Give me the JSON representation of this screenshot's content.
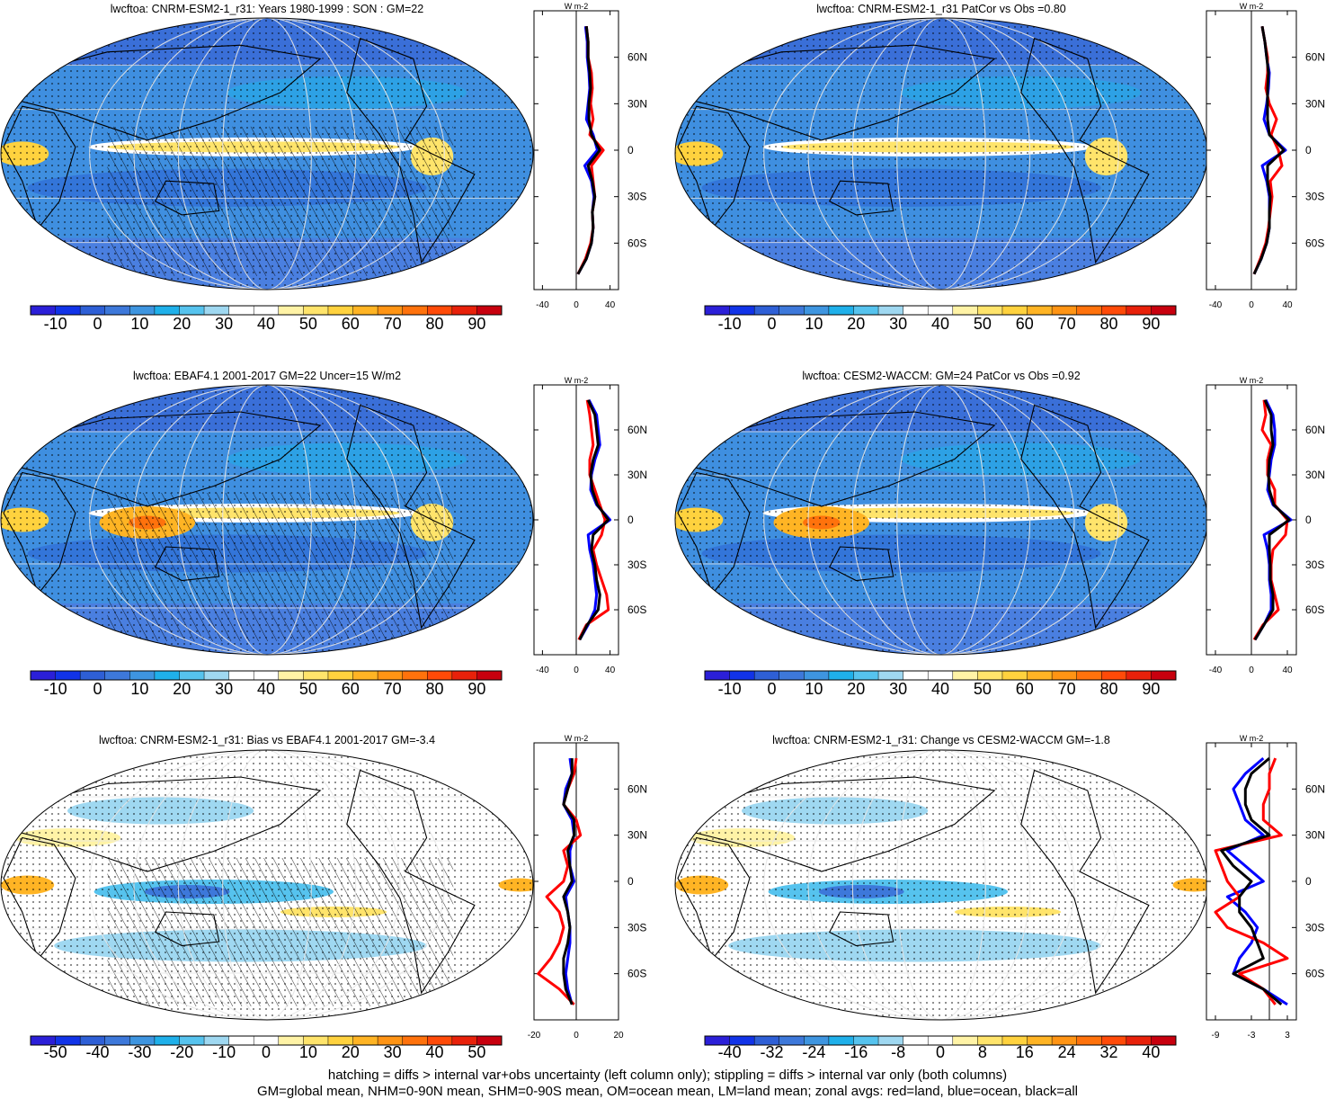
{
  "chart_data": [
    {
      "panel": "top-left",
      "type": "heatmap",
      "title": "lwcftoa: CNRM-ESM2-1_r31: Years 1980-1999 : SON : GM=22",
      "colorbar": {
        "tick_labels": [
          "-10",
          "0",
          "10",
          "20",
          "30",
          "40",
          "50",
          "60",
          "70",
          "80",
          "90"
        ],
        "colors": [
          "#2b1fd8",
          "#1133e8",
          "#2e5fd6",
          "#3d78da",
          "#3e95e0",
          "#1fb0ea",
          "#56c3ee",
          "#9fd8f1",
          "#ffffff",
          "#ffffff",
          "#fff3a6",
          "#ffe46b",
          "#ffd23e",
          "#ffb424",
          "#ff9414",
          "#ff720c",
          "#ff4a08",
          "#e8210a",
          "#c8000e"
        ]
      },
      "zonal": {
        "units": "W m-2",
        "x_tick_labels": [
          "-40",
          "0",
          "40"
        ],
        "xlim": [
          -50,
          50
        ],
        "y_tick_labels": [
          "60N",
          "30N",
          "0",
          "30S",
          "60S"
        ],
        "ylim": [
          -90,
          90
        ],
        "lat": [
          -80,
          -70,
          -60,
          -50,
          -40,
          -30,
          -20,
          -10,
          0,
          10,
          20,
          30,
          40,
          50,
          60,
          70,
          80
        ],
        "series": [
          {
            "color": "#0000ff",
            "values": [
              2,
              12,
              18,
              20,
              19,
              21,
              18,
              10,
              25,
              20,
              12,
              14,
              16,
              15,
              13,
              13,
              11
            ]
          },
          {
            "color": "#ff0000",
            "values": [
              2,
              11,
              17,
              20,
              19,
              22,
              20,
              18,
              32,
              16,
              20,
              17,
              19,
              18,
              14,
              14,
              12
            ]
          },
          {
            "color": "#000000",
            "values": [
              2,
              12,
              18,
              20,
              19,
              22,
              19,
              14,
              28,
              18,
              15,
              15,
              17,
              16,
              14,
              14,
              12
            ]
          }
        ]
      }
    },
    {
      "panel": "top-right",
      "type": "heatmap",
      "title": "lwcftoa: CNRM-ESM2-1_r31 PatCor vs Obs =0.80",
      "colorbar": {
        "tick_labels": [
          "-10",
          "0",
          "10",
          "20",
          "30",
          "40",
          "50",
          "60",
          "70",
          "80",
          "90"
        ],
        "colors": [
          "#2b1fd8",
          "#1133e8",
          "#2e5fd6",
          "#3d78da",
          "#3e95e0",
          "#1fb0ea",
          "#56c3ee",
          "#9fd8f1",
          "#ffffff",
          "#ffffff",
          "#fff3a6",
          "#ffe46b",
          "#ffd23e",
          "#ffb424",
          "#ff9414",
          "#ff720c",
          "#ff4a08",
          "#e8210a",
          "#c8000e"
        ]
      },
      "zonal": {
        "units": "W m-2",
        "x_tick_labels": [
          "-40",
          "0",
          "40"
        ],
        "xlim": [
          -50,
          50
        ],
        "y_tick_labels": [
          "60N",
          "30N",
          "0",
          "30S",
          "60S"
        ],
        "ylim": [
          -90,
          90
        ],
        "lat": [
          -80,
          -70,
          -60,
          -50,
          -40,
          -30,
          -20,
          -10,
          0,
          10,
          20,
          30,
          40,
          50,
          60,
          70,
          80
        ],
        "series": [
          {
            "color": "#0000ff",
            "values": [
              3,
              11,
              17,
              20,
              20,
              20,
              17,
              12,
              38,
              20,
              14,
              17,
              19,
              20,
              17,
              15,
              12
            ]
          },
          {
            "color": "#ff0000",
            "values": [
              3,
              10,
              16,
              19,
              21,
              23,
              21,
              34,
              30,
              22,
              28,
              20,
              16,
              18,
              18,
              15,
              12
            ]
          },
          {
            "color": "#000000",
            "values": [
              3,
              11,
              17,
              20,
              20,
              21,
              18,
              18,
              36,
              20,
              18,
              18,
              18,
              19,
              17,
              15,
              12
            ]
          }
        ]
      }
    },
    {
      "panel": "middle-left",
      "type": "heatmap",
      "title": "lwcftoa: EBAF4.1 2001-2017 GM=22 Uncer=15 W/m2",
      "colorbar": {
        "tick_labels": [
          "-10",
          "0",
          "10",
          "20",
          "30",
          "40",
          "50",
          "60",
          "70",
          "80",
          "90"
        ],
        "colors": [
          "#2b1fd8",
          "#1133e8",
          "#2e5fd6",
          "#3d78da",
          "#3e95e0",
          "#1fb0ea",
          "#56c3ee",
          "#9fd8f1",
          "#ffffff",
          "#ffffff",
          "#fff3a6",
          "#ffe46b",
          "#ffd23e",
          "#ffb424",
          "#ff9414",
          "#ff720c",
          "#ff4a08",
          "#e8210a",
          "#c8000e"
        ]
      },
      "zonal": {
        "units": "W m-2",
        "x_tick_labels": [
          "-40",
          "0",
          "40"
        ],
        "xlim": [
          -50,
          50
        ],
        "y_tick_labels": [
          "60N",
          "30N",
          "0",
          "30S",
          "60S"
        ],
        "ylim": [
          -90,
          90
        ],
        "lat": [
          -80,
          -70,
          -60,
          -50,
          -40,
          -30,
          -20,
          -10,
          0,
          10,
          20,
          30,
          40,
          50,
          60,
          70,
          80
        ],
        "series": [
          {
            "color": "#0000ff",
            "values": [
              4,
              14,
              22,
              24,
              22,
              20,
              16,
              14,
              40,
              24,
              17,
              18,
              22,
              28,
              26,
              24,
              15
            ]
          },
          {
            "color": "#ff0000",
            "values": [
              3,
              12,
              38,
              36,
              30,
              24,
              20,
              30,
              34,
              28,
              22,
              16,
              16,
              20,
              18,
              16,
              13
            ]
          },
          {
            "color": "#000000",
            "values": [
              4,
              13,
              26,
              28,
              24,
              22,
              18,
              20,
              38,
              25,
              19,
              17,
              20,
              26,
              24,
              22,
              14
            ]
          }
        ]
      }
    },
    {
      "panel": "middle-right",
      "type": "heatmap",
      "title": "lwcftoa: CESM2-WACCM: GM=24 PatCor vs Obs =0.92",
      "colorbar": {
        "tick_labels": [
          "-10",
          "0",
          "10",
          "20",
          "30",
          "40",
          "50",
          "60",
          "70",
          "80",
          "90"
        ],
        "colors": [
          "#2b1fd8",
          "#1133e8",
          "#2e5fd6",
          "#3d78da",
          "#3e95e0",
          "#1fb0ea",
          "#56c3ee",
          "#9fd8f1",
          "#ffffff",
          "#ffffff",
          "#fff3a6",
          "#ffe46b",
          "#ffd23e",
          "#ffb424",
          "#ff9414",
          "#ff720c",
          "#ff4a08",
          "#e8210a",
          "#c8000e"
        ]
      },
      "zonal": {
        "units": "W m-2",
        "x_tick_labels": [
          "-40",
          "0",
          "40"
        ],
        "xlim": [
          -50,
          50
        ],
        "y_tick_labels": [
          "60N",
          "30N",
          "0",
          "30S",
          "60S"
        ],
        "ylim": [
          -90,
          90
        ],
        "lat": [
          -80,
          -70,
          -60,
          -50,
          -40,
          -30,
          -20,
          -10,
          0,
          10,
          20,
          30,
          40,
          50,
          60,
          70,
          80
        ],
        "series": [
          {
            "color": "#0000ff",
            "values": [
              4,
              14,
              22,
              22,
              20,
              20,
              18,
              14,
              44,
              24,
              18,
              20,
              22,
              26,
              26,
              24,
              16
            ]
          },
          {
            "color": "#ff0000",
            "values": [
              3,
              13,
              30,
              26,
              22,
              22,
              24,
              38,
              40,
              26,
              26,
              18,
              18,
              22,
              12,
              16,
              14
            ]
          },
          {
            "color": "#000000",
            "values": [
              4,
              14,
              24,
              24,
              21,
              21,
              20,
              20,
              42,
              25,
              20,
              19,
              20,
              24,
              22,
              22,
              15
            ]
          }
        ]
      }
    },
    {
      "panel": "bottom-left",
      "type": "heatmap",
      "title": "lwcftoa: CNRM-ESM2-1_r31: Bias vs EBAF4.1 2001-2017  GM=-3.4",
      "colorbar": {
        "tick_labels": [
          "-50",
          "-40",
          "-30",
          "-20",
          "-10",
          "0",
          "10",
          "20",
          "30",
          "40",
          "50"
        ],
        "colors": [
          "#2b1fd8",
          "#1133e8",
          "#2e5fd6",
          "#3d78da",
          "#3e95e0",
          "#1fb0ea",
          "#56c3ee",
          "#9fd8f1",
          "#ffffff",
          "#ffffff",
          "#fff3a6",
          "#ffe46b",
          "#ffd23e",
          "#ffb424",
          "#ff9414",
          "#ff720c",
          "#ff4a08",
          "#e8210a",
          "#c8000e"
        ]
      },
      "zonal": {
        "units": "W m-2",
        "x_tick_labels": [
          "-20",
          "0",
          "20"
        ],
        "xlim": [
          -20,
          20
        ],
        "y_tick_labels": [
          "60N",
          "30N",
          "0",
          "30S",
          "60S"
        ],
        "ylim": [
          -90,
          90
        ],
        "lat": [
          -80,
          -70,
          -60,
          -50,
          -40,
          -30,
          -20,
          -10,
          0,
          10,
          20,
          30,
          40,
          50,
          60,
          70,
          80
        ],
        "series": [
          {
            "color": "#0000ff",
            "values": [
              -2,
              -4,
              -5,
              -4,
              -3,
              -3,
              -4,
              -5,
              -1,
              -3,
              -3,
              -1,
              -2,
              -6,
              -5,
              -2,
              -3
            ]
          },
          {
            "color": "#ff0000",
            "values": [
              -1,
              -8,
              -18,
              -12,
              -8,
              -6,
              -8,
              -14,
              -6,
              -4,
              -6,
              2,
              0,
              -6,
              -4,
              -1,
              0
            ]
          },
          {
            "color": "#000000",
            "values": [
              -2,
              -5,
              -6,
              -6,
              -4,
              -3,
              -4,
              -6,
              -2,
              -3,
              -4,
              -1,
              -1,
              -6,
              -4,
              -2,
              -2
            ]
          }
        ]
      }
    },
    {
      "panel": "bottom-right",
      "type": "heatmap",
      "title": "lwcftoa: CNRM-ESM2-1_r31: Change vs CESM2-WACCM GM=-1.8",
      "colorbar": {
        "tick_labels": [
          "-40",
          "-32",
          "-24",
          "-16",
          "-8",
          "0",
          "8",
          "16",
          "24",
          "32",
          "40"
        ],
        "colors": [
          "#2b1fd8",
          "#1133e8",
          "#2e5fd6",
          "#3d78da",
          "#3e95e0",
          "#1fb0ea",
          "#56c3ee",
          "#9fd8f1",
          "#ffffff",
          "#ffffff",
          "#fff3a6",
          "#ffe46b",
          "#ffd23e",
          "#ffb424",
          "#ff9414",
          "#ff720c",
          "#ff4a08",
          "#e8210a",
          "#c8000e"
        ]
      },
      "zonal": {
        "units": "W m-2",
        "x_tick_labels": [
          "-9",
          "-3",
          "3"
        ],
        "xlim": [
          -10.5,
          4.5
        ],
        "y_tick_labels": [
          "60N",
          "30N",
          "0",
          "30S",
          "60S"
        ],
        "ylim": [
          -90,
          90
        ],
        "lat": [
          -80,
          -70,
          -60,
          -50,
          -40,
          -30,
          -20,
          -10,
          0,
          10,
          20,
          30,
          40,
          50,
          60,
          70,
          80
        ],
        "series": [
          {
            "color": "#0000ff",
            "values": [
              3,
              -1,
              -6,
              -5,
              -3,
              -2,
              -4,
              -7,
              -1,
              -4,
              -7,
              -1,
              -4,
              -5,
              -6,
              -4,
              -1
            ]
          },
          {
            "color": "#ff0000",
            "values": [
              1,
              -1,
              -5,
              3,
              -1,
              -7,
              -9,
              -5,
              -7,
              -8,
              -9,
              2,
              -1,
              -1,
              0,
              0,
              1
            ]
          },
          {
            "color": "#000000",
            "values": [
              2,
              -1,
              -6,
              -1,
              -2,
              -3,
              -5,
              -5,
              -3,
              -6,
              -8,
              0,
              -3,
              -4,
              -4,
              -3,
              0
            ]
          }
        ]
      }
    }
  ],
  "footnote": {
    "line1": "hatching = diffs > internal var+obs uncertainty (left column only); stippling = diffs > internal var only (both columns)",
    "line2": "GM=global mean, NHM=0-90N mean, SHM=0-90S mean, OM=ocean mean, LM=land mean; zonal avgs: red=land, blue=ocean, black=all"
  }
}
